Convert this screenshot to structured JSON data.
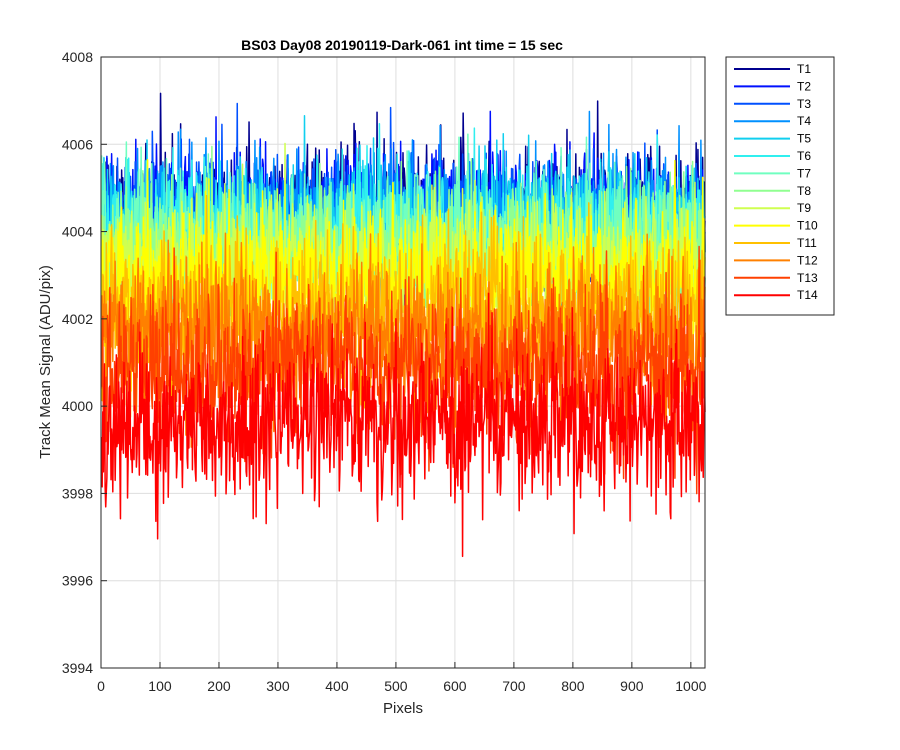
{
  "chart_data": {
    "type": "line",
    "title": "BS03 Day08 20190119-Dark-061 int time = 15 sec",
    "xlabel": "Pixels",
    "ylabel": "Track Mean Signal (ADU/pix)",
    "xlim": [
      0,
      1024
    ],
    "ylim": [
      3994,
      4008
    ],
    "xticks": [
      0,
      100,
      200,
      300,
      400,
      500,
      600,
      700,
      800,
      900,
      1000
    ],
    "yticks": [
      3994,
      3996,
      3998,
      4000,
      4002,
      4004,
      4006,
      4008
    ],
    "grid": true,
    "legend_position": "outside-top-right",
    "x": {
      "start": 1,
      "end": 1024
    },
    "series": [
      {
        "name": "T1",
        "color": "#00008F",
        "mean": 4004.4,
        "sd": 0.75
      },
      {
        "name": "T2",
        "color": "#0010FF",
        "mean": 4004.3,
        "sd": 0.75
      },
      {
        "name": "T3",
        "color": "#0050FF",
        "mean": 4004.3,
        "sd": 0.75
      },
      {
        "name": "T4",
        "color": "#0090FF",
        "mean": 4004.2,
        "sd": 0.75
      },
      {
        "name": "T5",
        "color": "#10CFEF",
        "mean": 4004.1,
        "sd": 0.75
      },
      {
        "name": "T6",
        "color": "#30EFEF",
        "mean": 4004.0,
        "sd": 0.75
      },
      {
        "name": "T7",
        "color": "#70FFC0",
        "mean": 4003.8,
        "sd": 0.75
      },
      {
        "name": "T8",
        "color": "#90FF90",
        "mean": 4003.5,
        "sd": 0.75
      },
      {
        "name": "T9",
        "color": "#CFFF50",
        "mean": 4003.2,
        "sd": 0.75
      },
      {
        "name": "T10",
        "color": "#FFFF00",
        "mean": 4002.8,
        "sd": 0.8
      },
      {
        "name": "T11",
        "color": "#FFC000",
        "mean": 4002.2,
        "sd": 0.8
      },
      {
        "name": "T12",
        "color": "#FF8000",
        "mean": 4001.6,
        "sd": 0.85
      },
      {
        "name": "T13",
        "color": "#FF4000",
        "mean": 4000.8,
        "sd": 0.85
      },
      {
        "name": "T14",
        "color": "#FF0000",
        "mean": 3999.6,
        "sd": 0.9
      }
    ]
  }
}
